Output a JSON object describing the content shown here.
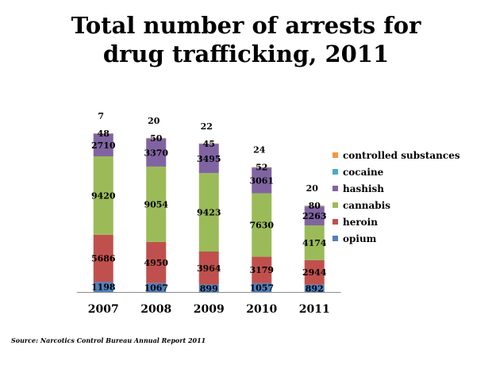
{
  "title_lines": [
    "Total number of arrests for",
    "drug trafficking, 2011"
  ],
  "source": "Source: Narcotics Control Bureau Annual Report 2011",
  "chart_data": {
    "type": "bar",
    "stacked": true,
    "categories": [
      "2007",
      "2008",
      "2009",
      "2010",
      "2011"
    ],
    "series": [
      {
        "name": "opium",
        "color": "#4F81BD",
        "values": [
          1198,
          1067,
          899,
          1057,
          892
        ]
      },
      {
        "name": "heroin",
        "color": "#C0504D",
        "values": [
          5686,
          4950,
          3964,
          3179,
          2944
        ]
      },
      {
        "name": "cannabis",
        "color": "#9BBB59",
        "values": [
          9420,
          9054,
          9423,
          7630,
          4174
        ]
      },
      {
        "name": "hashish",
        "color": "#8064A2",
        "values": [
          2710,
          3370,
          3495,
          3061,
          2263
        ]
      },
      {
        "name": "cocaine",
        "color": "#4BACC6",
        "values": [
          48,
          50,
          45,
          52,
          80
        ]
      },
      {
        "name": "controlled substances",
        "color": "#F79646",
        "values": [
          7,
          20,
          22,
          24,
          20
        ]
      }
    ],
    "legend_position": "right",
    "legend_order": [
      "controlled substances",
      "cocaine",
      "hashish",
      "cannabis",
      "heroin",
      "opium"
    ],
    "grid": false,
    "y_axis_visible": false
  }
}
